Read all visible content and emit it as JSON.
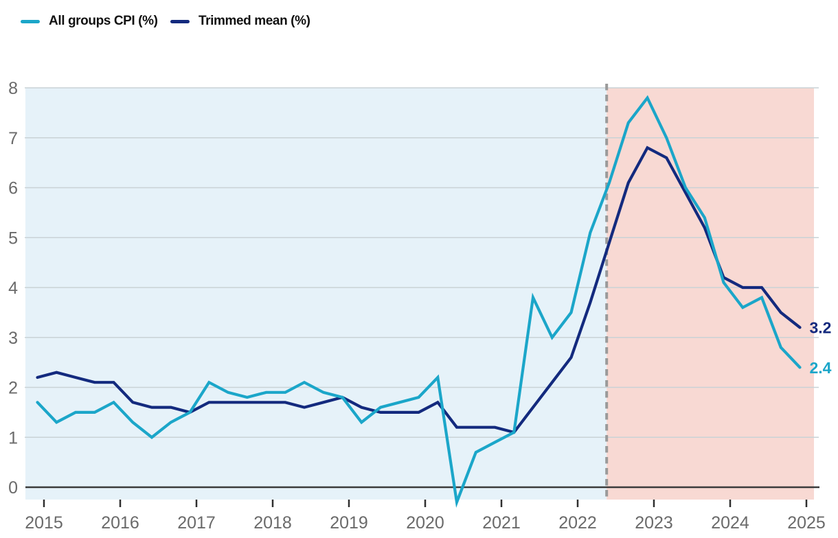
{
  "legend": {
    "items": [
      {
        "label": "All groups CPI (%)",
        "color": "#1ba6c9"
      },
      {
        "label": "Trimmed mean (%)",
        "color": "#132a7e"
      }
    ]
  },
  "chart_data": {
    "type": "line",
    "title": "",
    "xlabel": "",
    "ylabel": "",
    "grid": true,
    "legend_position": "top-left",
    "ylim": [
      -0.25,
      8
    ],
    "y_ticks": [
      0,
      1,
      2,
      3,
      4,
      5,
      6,
      7,
      8
    ],
    "x_tick_labels": [
      "2015",
      "2016",
      "2017",
      "2018",
      "2019",
      "2020",
      "2021",
      "2022",
      "2023",
      "2024",
      "2025"
    ],
    "x_quarters": [
      "2014 Q4",
      "2015 Q1",
      "2015 Q2",
      "2015 Q3",
      "2015 Q4",
      "2016 Q1",
      "2016 Q2",
      "2016 Q3",
      "2016 Q4",
      "2017 Q1",
      "2017 Q2",
      "2017 Q3",
      "2017 Q4",
      "2018 Q1",
      "2018 Q2",
      "2018 Q3",
      "2018 Q4",
      "2019 Q1",
      "2019 Q2",
      "2019 Q3",
      "2019 Q4",
      "2020 Q1",
      "2020 Q2",
      "2020 Q3",
      "2020 Q4",
      "2021 Q1",
      "2021 Q2",
      "2021 Q3",
      "2021 Q4",
      "2022 Q1",
      "2022 Q2",
      "2022 Q3",
      "2022 Q4",
      "2023 Q1",
      "2023 Q2",
      "2023 Q3",
      "2023 Q4",
      "2024 Q1",
      "2024 Q2",
      "2024 Q3",
      "2024 Q4"
    ],
    "series": [
      {
        "name": "Trimmed mean (%)",
        "color": "#132a7e",
        "end_label": "3.2",
        "values": [
          2.2,
          2.3,
          2.2,
          2.1,
          2.1,
          1.7,
          1.6,
          1.6,
          1.5,
          1.7,
          1.7,
          1.7,
          1.7,
          1.7,
          1.6,
          1.7,
          1.8,
          1.6,
          1.5,
          1.5,
          1.5,
          1.7,
          1.2,
          1.2,
          1.2,
          1.1,
          1.6,
          2.1,
          2.6,
          3.7,
          4.9,
          6.1,
          6.8,
          6.6,
          5.9,
          5.2,
          4.2,
          4.0,
          4.0,
          3.5,
          3.2
        ]
      },
      {
        "name": "All groups CPI (%)",
        "color": "#1ba6c9",
        "end_label": "2.4",
        "values": [
          1.7,
          1.3,
          1.5,
          1.5,
          1.7,
          1.3,
          1.0,
          1.3,
          1.5,
          2.1,
          1.9,
          1.8,
          1.9,
          1.9,
          2.1,
          1.9,
          1.8,
          1.3,
          1.6,
          1.7,
          1.8,
          2.2,
          -0.3,
          0.7,
          0.9,
          1.1,
          3.8,
          3.0,
          3.5,
          5.1,
          6.1,
          7.3,
          7.8,
          7.0,
          6.0,
          5.4,
          4.1,
          3.6,
          3.8,
          2.8,
          2.4
        ]
      }
    ],
    "regions": [
      {
        "name": "before-divider",
        "color": "#e6f2f9",
        "from": "2014 Q4",
        "to": "2022 Q2 (divider)"
      },
      {
        "name": "after-divider",
        "color": "#f8d9d3",
        "from": "2022 Q2 (divider)",
        "to": "2025"
      }
    ],
    "divider": {
      "style": "dashed",
      "color": "#9a9a9a",
      "position_year": 2022.38
    },
    "colors": {
      "gridline": "#c9d2d6",
      "zero_line": "#3b3b3b",
      "tick": "#2f2f2f",
      "axis_text": "#6a6a6a"
    }
  }
}
